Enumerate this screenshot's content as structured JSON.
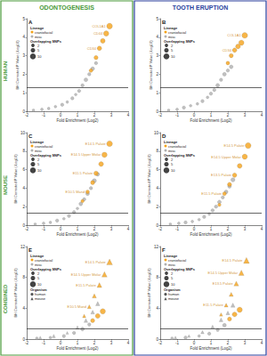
{
  "columns": [
    {
      "title": "ODONTOGENESIS",
      "color": "#4a9a3a"
    },
    {
      "title": "TOOTH ERUPTION",
      "color": "#2a3f9e"
    }
  ],
  "rows": [
    "HUMAN",
    "MOUSE",
    "COMBINED"
  ],
  "chart_data": [
    {
      "type": "scatter",
      "title": "A",
      "x_label": "Fold Enrichment (Log2)",
      "y_label": "BH Corrected P Value (-Log10)",
      "xlim": [
        -2,
        4
      ],
      "xticks": [
        -2,
        -1,
        0,
        1,
        2,
        3,
        4
      ],
      "ylim": [
        0,
        5
      ],
      "yticks": [
        0,
        1,
        2,
        3,
        4,
        5
      ],
      "grid": false,
      "threshold": 1.3,
      "lineage": {
        "title": "Lineage",
        "items": [
          {
            "name": "craniofacial",
            "color": "#f5a31a"
          },
          {
            "name": "misc",
            "color": "#b0b0b0"
          }
        ]
      },
      "snps_legend": {
        "title": "Overlapping SNPs",
        "values": [
          2,
          5,
          10
        ]
      },
      "series": [
        {
          "lineage": "misc",
          "x": [
            -1.6,
            -1.1,
            -0.7,
            -0.3,
            0.1,
            0.4,
            0.7,
            0.9,
            1.1,
            1.3,
            1.5,
            1.7,
            1.9,
            2.1
          ],
          "values": [
            0.05,
            0.1,
            0.15,
            0.25,
            0.35,
            0.5,
            0.7,
            0.9,
            1.1,
            1.4,
            1.7,
            2.0,
            2.3,
            2.6
          ],
          "snps": [
            1,
            1,
            1,
            1,
            2,
            1,
            2,
            1,
            2,
            2,
            3,
            2,
            3,
            2
          ],
          "labels": [
            null,
            null,
            null,
            null,
            null,
            null,
            null,
            null,
            null,
            null,
            null,
            null,
            null,
            null
          ]
        },
        {
          "lineage": "craniofacial",
          "x": [
            1.8,
            2.1,
            2.3,
            2.5,
            2.7,
            2.9
          ],
          "values": [
            2.2,
            2.9,
            3.4,
            3.8,
            4.2,
            4.6
          ],
          "snps": [
            3,
            4,
            5,
            6,
            8,
            10
          ],
          "labels": [
            null,
            null,
            "CD34",
            null,
            "CD44",
            "COL1A1"
          ]
        }
      ]
    },
    {
      "type": "scatter",
      "title": "B",
      "x_label": "Fold Enrichment (Log2)",
      "y_label": "BH Corrected P Value (-Log10)",
      "xlim": [
        -2,
        4
      ],
      "xticks": [
        -2,
        -1,
        0,
        1,
        2,
        3,
        4
      ],
      "ylim": [
        0,
        5
      ],
      "yticks": [
        0,
        1,
        2,
        3,
        4,
        5
      ],
      "grid": false,
      "threshold": 1.3,
      "lineage": {
        "title": "Lineage",
        "items": [
          {
            "name": "craniofacial",
            "color": "#f5a31a"
          },
          {
            "name": "misc",
            "color": "#b0b0b0"
          }
        ]
      },
      "snps_legend": {
        "title": "Overlapping SNPs",
        "values": [
          2,
          5,
          10
        ]
      },
      "series": [
        {
          "lineage": "misc",
          "x": [
            -1.5,
            -1.0,
            -0.6,
            -0.2,
            0.2,
            0.5,
            0.8,
            1.0,
            1.2,
            1.4,
            1.6,
            1.8,
            2.0,
            2.2
          ],
          "values": [
            0.05,
            0.1,
            0.2,
            0.3,
            0.4,
            0.55,
            0.75,
            0.95,
            1.15,
            1.4,
            1.7,
            2.0,
            2.2,
            2.4
          ],
          "snps": [
            1,
            1,
            2,
            1,
            1,
            2,
            1,
            2,
            2,
            3,
            2,
            3,
            2,
            3
          ],
          "labels": [
            null,
            null,
            null,
            null,
            null,
            null,
            null,
            null,
            null,
            null,
            null,
            null,
            null,
            null
          ]
        },
        {
          "lineage": "craniofacial",
          "x": [
            2.0,
            2.2,
            2.4,
            2.6,
            2.8,
            3.0
          ],
          "values": [
            2.6,
            3.0,
            3.3,
            3.5,
            3.7,
            4.1
          ],
          "snps": [
            3,
            4,
            5,
            6,
            8,
            10
          ],
          "labels": [
            null,
            null,
            "CD34",
            null,
            null,
            "COL1A1"
          ]
        }
      ]
    },
    {
      "type": "scatter",
      "title": "C",
      "x_label": "Fold Enrichment (Log2)",
      "y_label": "BH Corrected P Value (-Log10)",
      "xlim": [
        -2,
        4
      ],
      "xticks": [
        -2,
        -1,
        0,
        1,
        2,
        3,
        4
      ],
      "ylim": [
        0,
        10
      ],
      "yticks": [
        0,
        2,
        4,
        6,
        8,
        10
      ],
      "grid": false,
      "threshold": 1.3,
      "lineage": {
        "title": "Lineage",
        "items": [
          {
            "name": "craniofacial",
            "color": "#f5a31a"
          },
          {
            "name": "misc",
            "color": "#b0b0b0"
          }
        ]
      },
      "snps_legend": {
        "title": "Overlapping SNPs",
        "values": [
          2,
          5,
          10
        ]
      },
      "series": [
        {
          "lineage": "misc",
          "x": [
            -1.5,
            -1.0,
            -0.6,
            -0.2,
            0.2,
            0.5,
            0.8,
            1.0,
            1.2,
            1.4,
            1.6,
            1.8,
            2.0,
            2.2
          ],
          "values": [
            0.1,
            0.2,
            0.3,
            0.5,
            0.7,
            1.0,
            1.4,
            1.8,
            2.3,
            2.8,
            3.4,
            4.0,
            4.8,
            5.5
          ],
          "snps": [
            1,
            1,
            1,
            2,
            1,
            2,
            2,
            1,
            3,
            2,
            3,
            2,
            4,
            3
          ],
          "labels": [
            null,
            null,
            null,
            null,
            null,
            null,
            null,
            null,
            null,
            null,
            null,
            null,
            null,
            null
          ]
        },
        {
          "lineage": "craniofacial",
          "x": [
            1.3,
            1.6,
            1.9,
            2.1,
            2.4,
            2.6,
            2.9
          ],
          "values": [
            2.6,
            3.6,
            4.6,
            5.6,
            6.6,
            7.6,
            8.8
          ],
          "snps": [
            2,
            3,
            4,
            5,
            6,
            8,
            10
          ],
          "labels": [
            null,
            "E10.5 Mand",
            null,
            "E11.5 Palate",
            null,
            "E14.5 Upper Molar",
            "E14.5 Palate"
          ]
        }
      ]
    },
    {
      "type": "scatter",
      "title": "D",
      "x_label": "Fold Enrichment (Log2)",
      "y_label": "BH Corrected P Value (-Log10)",
      "xlim": [
        -2,
        4
      ],
      "xticks": [
        -2,
        -1,
        0,
        1,
        2,
        3,
        4
      ],
      "ylim": [
        0,
        10
      ],
      "yticks": [
        0,
        2,
        4,
        6,
        8,
        10
      ],
      "grid": false,
      "threshold": 1.3,
      "lineage": {
        "title": "Lineage",
        "items": [
          {
            "name": "craniofacial",
            "color": "#f5a31a"
          },
          {
            "name": "misc",
            "color": "#b0b0b0"
          }
        ]
      },
      "snps_legend": {
        "title": "Overlapping SNPs",
        "values": [
          2,
          5,
          10
        ]
      },
      "series": [
        {
          "lineage": "misc",
          "x": [
            -1.4,
            -0.9,
            -0.5,
            -0.1,
            0.3,
            0.6,
            0.9,
            1.1,
            1.3,
            1.5,
            1.7,
            1.9,
            2.1,
            2.3
          ],
          "values": [
            0.1,
            0.2,
            0.3,
            0.4,
            0.6,
            0.9,
            1.2,
            1.6,
            2.0,
            2.5,
            3.0,
            3.6,
            4.2,
            4.9
          ],
          "snps": [
            1,
            1,
            2,
            1,
            1,
            2,
            1,
            2,
            2,
            3,
            2,
            3,
            3,
            4
          ],
          "labels": [
            null,
            null,
            null,
            null,
            null,
            null,
            null,
            null,
            null,
            null,
            null,
            null,
            null,
            null
          ]
        },
        {
          "lineage": "craniofacial",
          "x": [
            1.5,
            1.8,
            2.1,
            2.4,
            2.7,
            3.0,
            3.2
          ],
          "values": [
            2.2,
            3.4,
            4.4,
            5.4,
            6.4,
            7.4,
            8.6
          ],
          "snps": [
            2,
            3,
            4,
            5,
            6,
            8,
            10
          ],
          "labels": [
            null,
            "E11.5 Palate",
            null,
            "E13.5 Palate",
            null,
            "E14.5 Upper Molar",
            "E14.5 Palate"
          ]
        }
      ]
    },
    {
      "type": "scatter",
      "title": "E",
      "x_label": "Fold Enrichment (Log2)",
      "y_label": "BH Corrected P Value (-Log10)",
      "xlim": [
        -2,
        4
      ],
      "xticks": [
        -2,
        -1,
        0,
        1,
        2,
        3,
        4
      ],
      "ylim": [
        0,
        12
      ],
      "yticks": [
        0,
        4,
        8,
        12
      ],
      "grid": false,
      "threshold": 1.3,
      "lineage": {
        "title": "Lineage",
        "items": [
          {
            "name": "craniofacial",
            "color": "#f5a31a"
          },
          {
            "name": "misc",
            "color": "#b0b0b0"
          }
        ]
      },
      "snps_legend": {
        "title": "Overlapping SNPs",
        "values": [
          2,
          5,
          10
        ]
      },
      "organism": {
        "title": "Organism",
        "items": [
          {
            "name": "human",
            "marker": "circle"
          },
          {
            "name": "mouse",
            "marker": "triangle"
          }
        ]
      },
      "series": [
        {
          "lineage": "misc",
          "organism": "human",
          "x": [
            -1.4,
            -0.6,
            0.2,
            0.8,
            1.3,
            1.7
          ],
          "values": [
            0.1,
            0.2,
            0.4,
            0.8,
            1.3,
            1.9
          ],
          "snps": [
            1,
            1,
            2,
            2,
            3,
            2
          ],
          "labels": [
            null,
            null,
            null,
            null,
            null,
            null
          ]
        },
        {
          "lineage": "misc",
          "organism": "mouse",
          "x": [
            -1.2,
            -0.4,
            0.4,
            1.0,
            1.5,
            1.9,
            2.2
          ],
          "values": [
            0.2,
            0.4,
            0.8,
            1.5,
            2.4,
            3.5,
            4.6
          ],
          "snps": [
            1,
            2,
            1,
            2,
            3,
            3,
            4
          ],
          "labels": [
            null,
            null,
            null,
            null,
            null,
            null,
            null
          ]
        },
        {
          "lineage": "craniofacial",
          "organism": "human",
          "x": [
            1.9,
            2.2,
            2.5
          ],
          "values": [
            2.4,
            3.0,
            3.6
          ],
          "snps": [
            4,
            6,
            8
          ],
          "labels": [
            null,
            null,
            null
          ]
        },
        {
          "lineage": "craniofacial",
          "organism": "mouse",
          "x": [
            1.4,
            1.7,
            2.0,
            2.3,
            2.6,
            2.9
          ],
          "values": [
            3.0,
            4.2,
            5.6,
            7.0,
            8.4,
            10.0
          ],
          "snps": [
            2,
            3,
            4,
            6,
            8,
            10
          ],
          "labels": [
            null,
            "E10.5 Mand",
            null,
            "E11.5 Palate",
            "E14.5 Upper Molar",
            "E14.5 Palate"
          ]
        }
      ]
    },
    {
      "type": "scatter",
      "title": "F",
      "x_label": "Fold Enrichment (Log2)",
      "y_label": "BH Corrected P Value (-Log10)",
      "xlim": [
        -2,
        4
      ],
      "xticks": [
        -2,
        -1,
        0,
        1,
        2,
        3,
        4
      ],
      "ylim": [
        0,
        12
      ],
      "yticks": [
        0,
        4,
        8,
        12
      ],
      "grid": false,
      "threshold": 1.3,
      "lineage": {
        "title": "Lineage",
        "items": [
          {
            "name": "craniofacial",
            "color": "#f5a31a"
          },
          {
            "name": "misc",
            "color": "#b0b0b0"
          }
        ]
      },
      "snps_legend": {
        "title": "Overlapping SNPs",
        "values": [
          2,
          5,
          10
        ]
      },
      "organism": {
        "title": "Organism",
        "items": [
          {
            "name": "human",
            "marker": "circle"
          },
          {
            "name": "mouse",
            "marker": "triangle"
          }
        ]
      },
      "series": [
        {
          "lineage": "misc",
          "organism": "human",
          "x": [
            -1.3,
            -0.5,
            0.3,
            0.9,
            1.4,
            1.8
          ],
          "values": [
            0.1,
            0.2,
            0.4,
            0.7,
            1.2,
            1.8
          ],
          "snps": [
            1,
            2,
            1,
            2,
            2,
            3
          ],
          "labels": [
            null,
            null,
            null,
            null,
            null,
            null
          ]
        },
        {
          "lineage": "misc",
          "organism": "mouse",
          "x": [
            -1.1,
            -0.3,
            0.5,
            1.1,
            1.6,
            2.0,
            2.3
          ],
          "values": [
            0.2,
            0.4,
            0.9,
            1.6,
            2.5,
            3.4,
            4.4
          ],
          "snps": [
            1,
            1,
            2,
            2,
            3,
            3,
            4
          ],
          "labels": [
            null,
            null,
            null,
            null,
            null,
            null,
            null
          ]
        },
        {
          "lineage": "craniofacial",
          "organism": "human",
          "x": [
            2.1,
            2.4,
            2.7
          ],
          "values": [
            2.6,
            3.2,
            3.8
          ],
          "snps": [
            4,
            6,
            8
          ],
          "labels": [
            null,
            null,
            null
          ]
        },
        {
          "lineage": "craniofacial",
          "organism": "mouse",
          "x": [
            1.6,
            1.9,
            2.2,
            2.5,
            2.8,
            3.1
          ],
          "values": [
            3.2,
            4.4,
            5.8,
            7.2,
            8.6,
            10.2
          ],
          "snps": [
            2,
            3,
            4,
            6,
            8,
            10
          ],
          "labels": [
            null,
            "E11.5 Palate",
            null,
            "E13.5 Palate",
            "E14.5 Upper Molar",
            "E14.5 Palate"
          ]
        }
      ]
    }
  ]
}
